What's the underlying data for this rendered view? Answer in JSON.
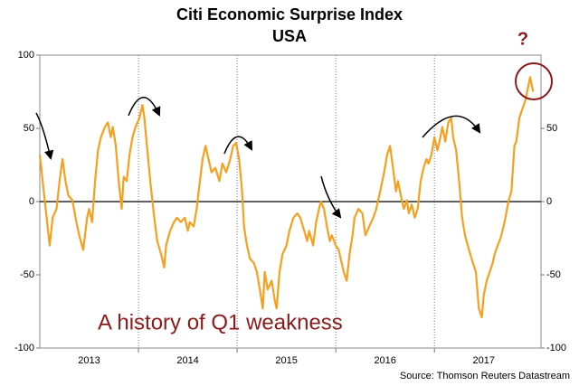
{
  "chart_data": {
    "type": "line",
    "title": "Citi Economic Surprise Index",
    "subtitle": "USA",
    "annotations": [
      "A history of Q1 weakness",
      "?"
    ],
    "source": "Source: Thomson Reuters Datastream",
    "x": [
      2013.0,
      2013.1,
      2013.13,
      2013.17,
      2013.2,
      2013.23,
      2013.26,
      2013.29,
      2013.33,
      2013.37,
      2013.4,
      2013.44,
      2013.48,
      2013.5,
      2013.53,
      2013.56,
      2013.59,
      2013.62,
      2013.66,
      2013.69,
      2013.72,
      2013.74,
      2013.77,
      2013.8,
      2013.83,
      2013.85,
      2013.88,
      2013.91,
      2013.94,
      2013.97,
      2014.01,
      2014.04,
      2014.06,
      2014.09,
      2014.12,
      2014.16,
      2014.19,
      2014.23,
      2014.26,
      2014.28,
      2014.32,
      2014.36,
      2014.39,
      2014.43,
      2014.47,
      2014.5,
      2014.52,
      2014.56,
      2014.59,
      2014.61,
      2014.65,
      2014.68,
      2014.71,
      2014.74,
      2014.78,
      2014.82,
      2014.85,
      2014.89,
      2014.93,
      2014.96,
      2014.99,
      2015.02,
      2015.05,
      2015.07,
      2015.1,
      2015.13,
      2015.17,
      2015.2,
      2015.23,
      2015.26,
      2015.28,
      2015.31,
      2015.35,
      2015.38,
      2015.4,
      2015.43,
      2015.46,
      2015.5,
      2015.53,
      2015.57,
      2015.61,
      2015.64,
      2015.68,
      2015.71,
      2015.73,
      2015.77,
      2015.8,
      2015.83,
      2015.85,
      2015.88,
      2015.91,
      2015.94,
      2015.96,
      2016.0,
      2016.03,
      2016.06,
      2016.08,
      2016.11,
      2016.14,
      2016.17,
      2016.19,
      2016.23,
      2016.27,
      2016.3,
      2016.34,
      2016.38,
      2016.41,
      2016.45,
      2016.49,
      2016.52,
      2016.55,
      2016.58,
      2016.61,
      2016.63,
      2016.66,
      2016.69,
      2016.72,
      2016.74,
      2016.77,
      2016.8,
      2016.83,
      2016.86,
      2016.89,
      2016.92,
      2016.94,
      2016.97,
      2017.0,
      2017.03,
      2017.06,
      2017.08,
      2017.11,
      2017.14,
      2017.17,
      2017.19,
      2017.22,
      2017.25,
      2017.28,
      2017.31,
      2017.35,
      2017.39,
      2017.42,
      2017.45,
      2017.48,
      2017.5,
      2017.53,
      2017.56,
      2017.59,
      2017.61,
      2017.64,
      2017.67,
      2017.7,
      2017.72,
      2017.75,
      2017.78,
      2017.81,
      2017.83,
      2017.86,
      2017.89,
      2017.92,
      2017.94,
      2017.97,
      2018.0
    ],
    "series": [
      {
        "color": "#f5a01f",
        "values": [
          32,
          -30,
          -11,
          -5,
          14,
          29,
          14,
          4,
          1,
          -14,
          -23,
          -33,
          -11,
          -5,
          -14,
          14,
          35,
          44,
          51,
          54,
          44,
          51,
          38,
          14,
          -5,
          17,
          14,
          32,
          44,
          51,
          57,
          66,
          57,
          35,
          14,
          -11,
          -27,
          -36,
          -45,
          -30,
          -20,
          -14,
          -11,
          -14,
          -11,
          -20,
          -14,
          -17,
          -5,
          7,
          29,
          38,
          29,
          20,
          23,
          14,
          26,
          20,
          29,
          38,
          40,
          29,
          7,
          -17,
          -30,
          -39,
          -42,
          -48,
          -60,
          -73,
          -48,
          -60,
          -54,
          -67,
          -73,
          -48,
          -36,
          -30,
          -20,
          -11,
          -8,
          -11,
          -20,
          -27,
          -20,
          -30,
          -14,
          -5,
          0,
          -5,
          -17,
          -27,
          -23,
          -30,
          -33,
          -42,
          -48,
          -54,
          -36,
          -23,
          -11,
          -5,
          -8,
          -23,
          -17,
          -11,
          -5,
          7,
          20,
          32,
          38,
          23,
          7,
          14,
          4,
          -5,
          1,
          -8,
          -2,
          -11,
          -5,
          14,
          23,
          29,
          26,
          32,
          44,
          35,
          44,
          51,
          41,
          54,
          57,
          44,
          35,
          14,
          -11,
          -23,
          -33,
          -42,
          -48,
          -73,
          -79,
          -64,
          -54,
          -48,
          -42,
          -36,
          -30,
          -25,
          -17,
          -11,
          0,
          7,
          38,
          41,
          57,
          63,
          69,
          75,
          85,
          75
        ]
      }
    ],
    "xlim": [
      2013.0,
      2018.08
    ],
    "xticks": [
      {
        "value": 2013.5,
        "label": "2013"
      },
      {
        "value": 2014.5,
        "label": "2014"
      },
      {
        "value": 2015.5,
        "label": "2015"
      },
      {
        "value": 2016.5,
        "label": "2016"
      },
      {
        "value": 2017.5,
        "label": "2017"
      }
    ],
    "xgrid": [
      2014,
      2015,
      2016,
      2017
    ],
    "ylim": [
      -100,
      100
    ],
    "yticks": [
      -100,
      -50,
      0,
      50,
      100
    ],
    "y2lim": [
      -100,
      100
    ],
    "y2ticks": [
      -100,
      -50,
      0,
      50
    ]
  }
}
